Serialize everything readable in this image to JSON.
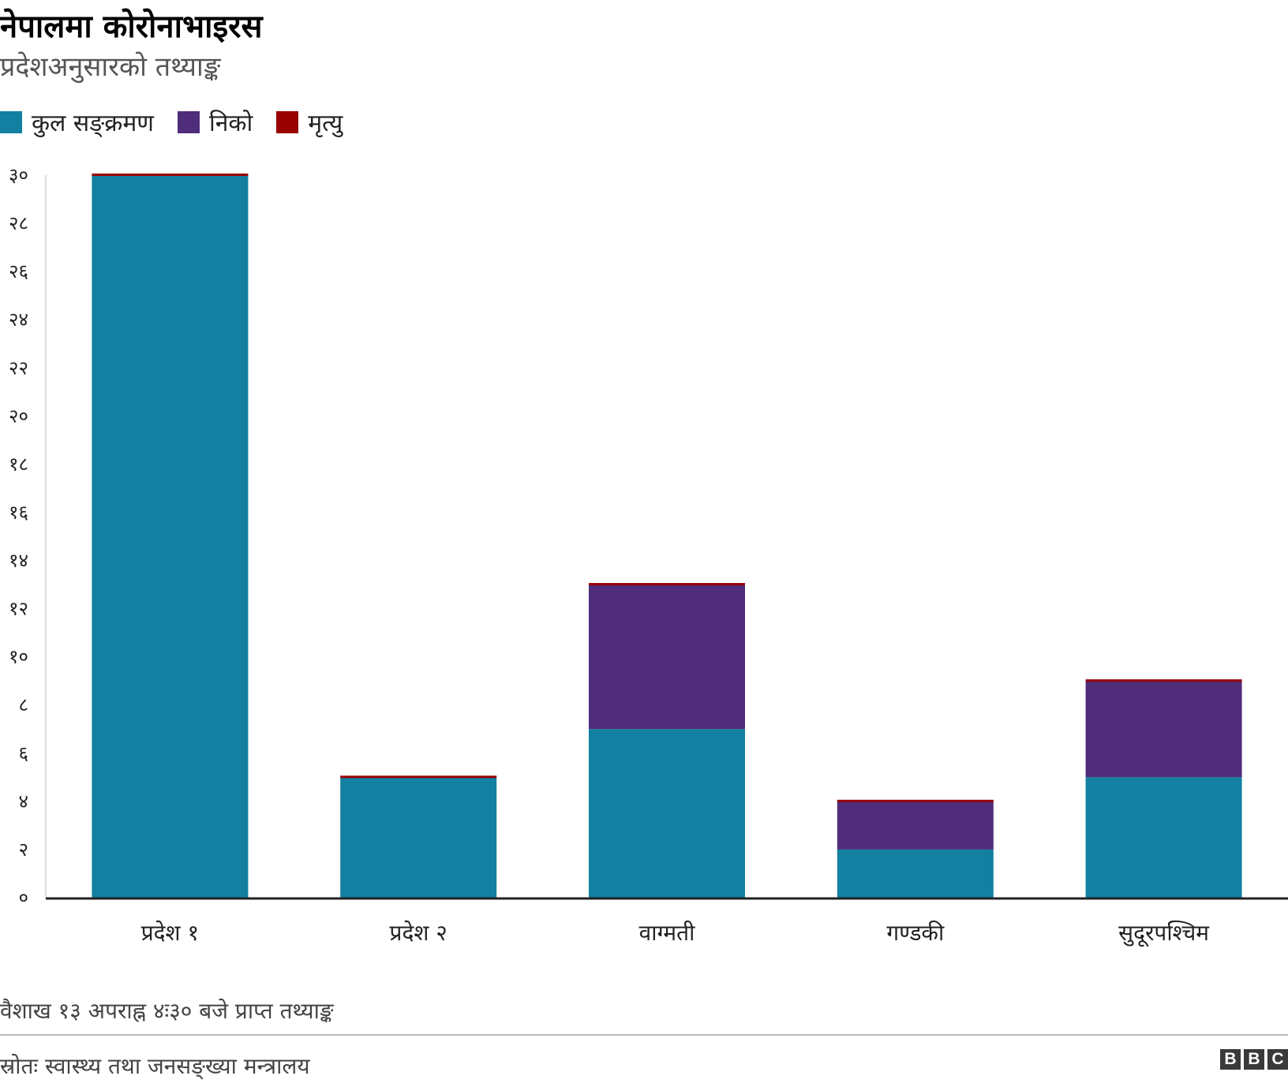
{
  "header": {
    "title": "नेपालमा कोरोनाभाइरस",
    "subtitle": "प्रदेशअनुसारको तथ्याङ्क"
  },
  "chart_data": {
    "type": "bar",
    "stacked": true,
    "title": "नेपालमा कोरोनाभाइरस",
    "subtitle": "प्रदेशअनुसारको तथ्याङ्क",
    "xlabel": "",
    "ylabel": "",
    "categories": [
      "प्रदेश १",
      "प्रदेश २",
      "वाग्मती",
      "गण्डकी",
      "सुदूरपश्चिम"
    ],
    "series": [
      {
        "name": "कुल सङ्क्रमण",
        "color": "#1380A1",
        "values": [
          30,
          5,
          7,
          2,
          5
        ]
      },
      {
        "name": "निको",
        "color": "#4F2D7A",
        "values": [
          0,
          0,
          6,
          2,
          4
        ]
      },
      {
        "name": "मृत्यु",
        "color": "#990000",
        "values": [
          0,
          0,
          0,
          0,
          0
        ]
      }
    ],
    "ylim": [
      0,
      30
    ],
    "yticks": [
      0,
      2,
      4,
      6,
      8,
      10,
      12,
      14,
      16,
      18,
      20,
      22,
      24,
      26,
      28,
      30
    ],
    "ytick_labels": [
      "०",
      "२",
      "४",
      "६",
      "८",
      "१०",
      "१२",
      "१४",
      "१६",
      "१८",
      "२०",
      "२२",
      "२४",
      "२६",
      "२८",
      "३०"
    ],
    "legend": "top-left",
    "grid": false
  },
  "footer": {
    "note": "वैशाख १३ अपराह्न ४ः३० बजे प्राप्त तथ्याङ्क",
    "source": "स्रोतः स्वास्थ्य तथा जनसङ्ख्या मन्त्रालय",
    "logo_letters": [
      "B",
      "B",
      "C"
    ]
  }
}
